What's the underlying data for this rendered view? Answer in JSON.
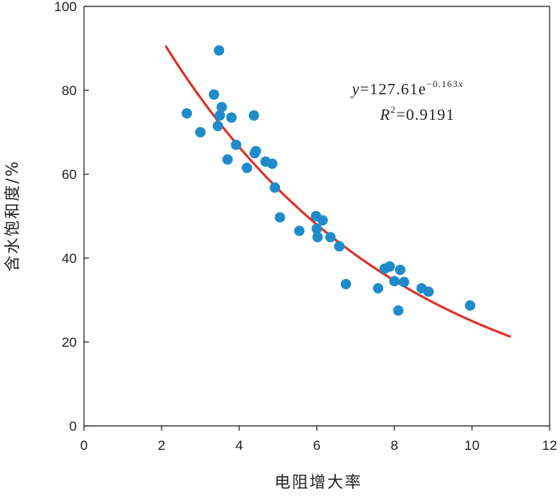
{
  "chart_data": {
    "type": "scatter",
    "title": "",
    "xlabel": "电阻增大率",
    "ylabel": "含水饱和度/%",
    "xlim": [
      0,
      12
    ],
    "ylim": [
      0,
      100
    ],
    "xticks": [
      "0",
      "2",
      "4",
      "6",
      "8",
      "10",
      "12"
    ],
    "yticks": [
      "0",
      "20",
      "40",
      "60",
      "80",
      "100"
    ],
    "grid": false,
    "marker_color": "#1F8BC9",
    "fit_color": "#D9352B",
    "points": [
      [
        2.65,
        74.5
      ],
      [
        3.0,
        70.0
      ],
      [
        3.35,
        79.0
      ],
      [
        3.45,
        71.5
      ],
      [
        3.5,
        74.0
      ],
      [
        3.55,
        76.0
      ],
      [
        3.48,
        89.5
      ],
      [
        3.7,
        63.5
      ],
      [
        3.8,
        73.5
      ],
      [
        3.92,
        67.0
      ],
      [
        4.2,
        61.5
      ],
      [
        4.38,
        74.0
      ],
      [
        4.4,
        65.0
      ],
      [
        4.43,
        65.5
      ],
      [
        4.68,
        63.0
      ],
      [
        4.85,
        62.5
      ],
      [
        4.92,
        56.8
      ],
      [
        5.05,
        49.7
      ],
      [
        5.55,
        46.5
      ],
      [
        5.98,
        50.0
      ],
      [
        6.0,
        47.0
      ],
      [
        6.02,
        45.0
      ],
      [
        6.15,
        49.0
      ],
      [
        6.35,
        45.0
      ],
      [
        6.58,
        42.8
      ],
      [
        6.75,
        33.8
      ],
      [
        7.58,
        32.8
      ],
      [
        7.75,
        37.5
      ],
      [
        7.88,
        38.0
      ],
      [
        8.0,
        34.5
      ],
      [
        8.1,
        27.5
      ],
      [
        8.15,
        37.2
      ],
      [
        8.25,
        34.3
      ],
      [
        8.7,
        32.8
      ],
      [
        8.88,
        32.0
      ],
      [
        9.95,
        28.7
      ]
    ],
    "fit": {
      "a": 127.61,
      "b": -0.163,
      "x_range": [
        2.1,
        11.0
      ],
      "equation_lhs": "y",
      "equation_eq": "=127.61e",
      "equation_exp": "−0.163",
      "equation_exp_var": "x",
      "r2_lhs": "R",
      "r2_sup": "2",
      "r2_rhs": "=0.9191"
    }
  }
}
